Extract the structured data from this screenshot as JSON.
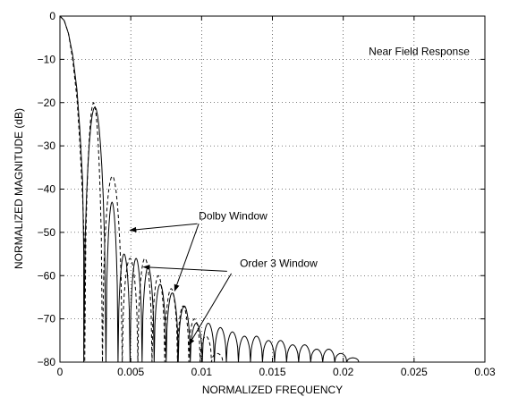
{
  "chart_data": {
    "type": "line",
    "title": "",
    "xlabel": "NORMALIZED FREQUENCY",
    "ylabel": "NORMALIZED MAGNITUDE (dB)",
    "xlim": [
      0,
      0.03
    ],
    "ylim": [
      -80,
      0
    ],
    "grid": true,
    "x_ticks": [
      "0",
      "0.005",
      "0.01",
      "0.015",
      "0.02",
      "0.025",
      "0.03"
    ],
    "x_tick_values": [
      0,
      0.005,
      0.01,
      0.015,
      0.02,
      0.025,
      0.03
    ],
    "y_ticks": [
      "0",
      "−10",
      "−20",
      "−30",
      "−40",
      "−50",
      "−60",
      "−70",
      "−80"
    ],
    "y_tick_values": [
      0,
      -10,
      -20,
      -30,
      -40,
      -50,
      -60,
      -70,
      -80
    ],
    "series": [
      {
        "style": "solid",
        "main_lobe": [
          [
            0,
            0
          ],
          [
            0.0003,
            -1
          ],
          [
            0.0006,
            -4
          ],
          [
            0.0009,
            -9
          ],
          [
            0.0012,
            -17
          ],
          [
            0.0014,
            -26
          ],
          [
            0.0016,
            -38
          ],
          [
            0.00168,
            -55
          ]
        ],
        "nulls": [
          0.00168,
          0.00325,
          0.0041,
          0.00495,
          0.0058,
          0.00665,
          0.0075,
          0.00835,
          0.0092,
          0.01005,
          0.0109,
          0.01175,
          0.0126,
          0.01345,
          0.0143,
          0.01515,
          0.016,
          0.01685,
          0.0177,
          0.01855,
          0.0194,
          0.02025,
          0.0211,
          0.0219
        ],
        "lobe_peaks": [
          -21,
          -43,
          -55,
          -56,
          -58,
          -62,
          -64,
          -67,
          -71,
          -71,
          -72,
          -73,
          -74,
          -74,
          -75,
          -75,
          -76,
          -76,
          -77,
          -77,
          -78,
          -79,
          -80
        ]
      },
      {
        "style": "dashed",
        "main_lobe": [
          [
            0,
            0
          ],
          [
            0.0003,
            -1
          ],
          [
            0.0006,
            -4
          ],
          [
            0.0009,
            -10
          ],
          [
            0.0012,
            -19
          ],
          [
            0.0014,
            -29
          ],
          [
            0.0016,
            -42
          ],
          [
            0.00175,
            -55
          ]
        ],
        "nulls": [
          0.00175,
          0.003,
          0.0044,
          0.0055,
          0.0065,
          0.0074,
          0.0083,
          0.0091,
          0.0099,
          0.0107,
          0.0115
        ],
        "lobe_peaks": [
          -20,
          -37,
          -56,
          -56,
          -60,
          -63,
          -67,
          -70,
          -74,
          -78
        ]
      }
    ],
    "annotations": [
      {
        "text": "Near Field Response",
        "x": 0.0218,
        "y": -9
      },
      {
        "text": "Dolby Window",
        "x": 0.0098,
        "y": -47
      },
      {
        "text": "Order 3 Window",
        "x": 0.0127,
        "y": -58
      }
    ],
    "arrows": [
      {
        "from": [
          0.0097,
          -48
        ],
        "to": [
          0.00495,
          -49.5
        ]
      },
      {
        "from": [
          0.0098,
          -48
        ],
        "to": [
          0.0081,
          -63.5
        ]
      },
      {
        "from": [
          0.0118,
          -59
        ],
        "to": [
          0.0059,
          -58
        ]
      },
      {
        "from": [
          0.0121,
          -59.5
        ],
        "to": [
          0.0091,
          -76
        ]
      }
    ]
  }
}
